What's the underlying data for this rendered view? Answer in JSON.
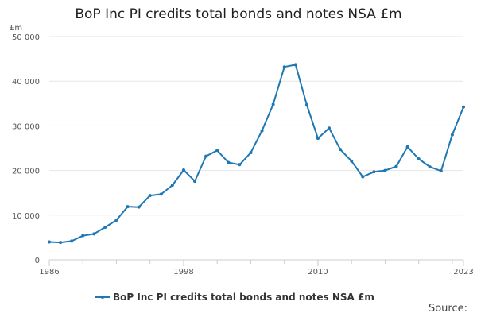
{
  "chart_data": {
    "type": "line",
    "title": "BoP Inc PI credits total bonds and notes NSA £m",
    "ylabel": "£m",
    "xlabel": "",
    "source_label": "Source:",
    "ylim": [
      0,
      50000
    ],
    "xlim": [
      1986,
      2023
    ],
    "y_ticks": [
      0,
      10000,
      20000,
      30000,
      40000,
      50000
    ],
    "y_tick_labels": [
      "0",
      "10 000",
      "20 000",
      "30 000",
      "40 000",
      "50 000"
    ],
    "x_tick_labels": [
      1986,
      1998,
      2010,
      2023
    ],
    "grid": "horizontal",
    "legend_position": "bottom",
    "colors": {
      "series": "#1f77b4",
      "grid": "#e6e6e6",
      "axis": "#cccccc"
    },
    "series": [
      {
        "name": "BoP Inc PI credits total bonds and notes NSA £m",
        "x": [
          1986,
          1987,
          1988,
          1989,
          1990,
          1991,
          1992,
          1993,
          1994,
          1995,
          1996,
          1997,
          1998,
          1999,
          2000,
          2001,
          2002,
          2003,
          2004,
          2005,
          2006,
          2007,
          2008,
          2009,
          2010,
          2011,
          2012,
          2013,
          2014,
          2015,
          2016,
          2017,
          2018,
          2019,
          2020,
          2021,
          2022,
          2023
        ],
        "values": [
          4000,
          3900,
          4200,
          5400,
          5800,
          7300,
          8900,
          11900,
          11800,
          14400,
          14700,
          16700,
          20100,
          17600,
          23200,
          24500,
          21800,
          21300,
          24000,
          28900,
          34800,
          43200,
          43700,
          34700,
          27200,
          29500,
          24700,
          22100,
          18600,
          19700,
          20000,
          20900,
          25300,
          22600,
          20800,
          19900,
          28000,
          34200
        ]
      }
    ]
  }
}
